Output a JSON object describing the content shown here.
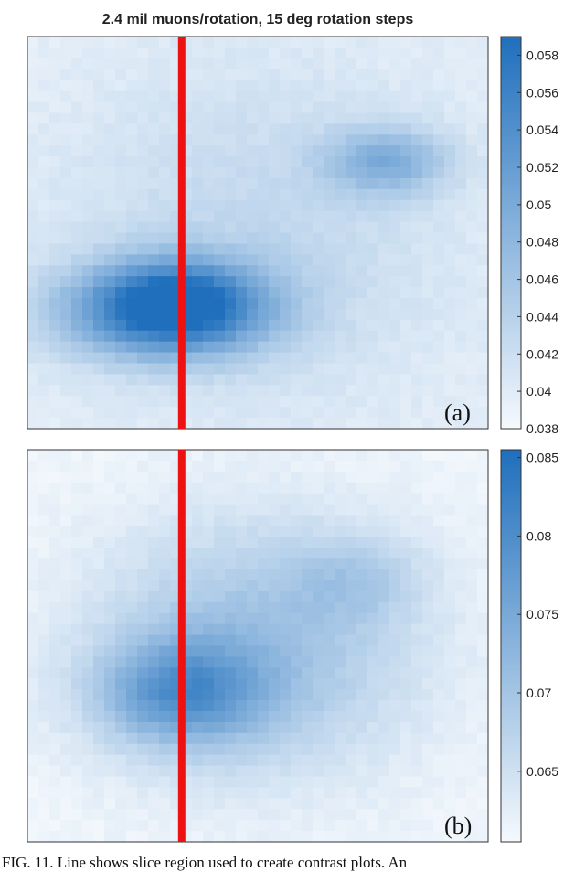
{
  "chart_data": [
    {
      "type": "heatmap",
      "title": "2.4 mil muons/rotation, 15 deg rotation steps",
      "panel_label": "(a)",
      "colorbar": {
        "ticks": [
          "0.058",
          "0.056",
          "0.054",
          "0.052",
          "0.05",
          "0.048",
          "0.046",
          "0.044",
          "0.042",
          "0.04",
          "0.038"
        ],
        "range": [
          0.038,
          0.059
        ]
      },
      "background": 0.0395,
      "blobs": [
        {
          "x": 0.3,
          "y": 0.7,
          "w": 0.28,
          "h": 0.15,
          "a": 0.0175
        },
        {
          "x": 0.33,
          "y": 0.66,
          "w": 0.2,
          "h": 0.13,
          "a": 0.006
        },
        {
          "x": 0.78,
          "y": 0.32,
          "w": 0.17,
          "h": 0.11,
          "a": 0.0085
        },
        {
          "x": 0.5,
          "y": 0.5,
          "w": 0.55,
          "h": 0.55,
          "a": 0.0035
        }
      ],
      "slice_line_x_fraction": 0.335,
      "slice_line_color": "#ee1111",
      "colormap": [
        "#f5f9fd",
        "#1f6fbc"
      ]
    },
    {
      "type": "heatmap",
      "title": "",
      "panel_label": "(b)",
      "colorbar": {
        "ticks": [
          "0.085",
          "0.08",
          "0.075",
          "0.07",
          "0.065"
        ],
        "range": [
          0.0605,
          0.0855
        ]
      },
      "background": 0.061,
      "blobs": [
        {
          "x": 0.5,
          "y": 0.5,
          "w": 0.45,
          "h": 0.42,
          "a": 0.0095
        },
        {
          "x": 0.33,
          "y": 0.62,
          "w": 0.23,
          "h": 0.17,
          "a": 0.0135
        },
        {
          "x": 0.72,
          "y": 0.33,
          "w": 0.18,
          "h": 0.14,
          "a": 0.0045
        }
      ],
      "slice_line_x_fraction": 0.335,
      "slice_line_color": "#ee1111",
      "colormap": [
        "#f5f9fd",
        "#1f6fbc"
      ]
    }
  ],
  "caption": "FIG. 11. Line shows slice region used to create contrast plots. An"
}
